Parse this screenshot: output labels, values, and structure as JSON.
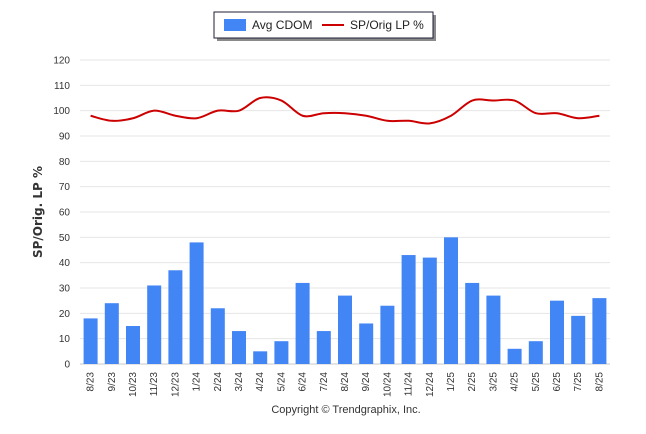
{
  "chart_data": {
    "type": "bar+line",
    "categories": [
      "8/23",
      "9/23",
      "10/23",
      "11/23",
      "12/23",
      "1/24",
      "2/24",
      "3/24",
      "4/24",
      "5/24",
      "6/24",
      "7/24",
      "8/24",
      "9/24",
      "10/24",
      "11/24",
      "12/24",
      "1/25",
      "2/25",
      "3/25",
      "4/25",
      "5/25",
      "6/25",
      "7/25",
      "8/25"
    ],
    "series": [
      {
        "name": "Avg CDOM",
        "type": "bar",
        "color": "#4285f4",
        "values": [
          18,
          24,
          15,
          31,
          37,
          48,
          22,
          13,
          5,
          9,
          32,
          13,
          27,
          16,
          23,
          43,
          42,
          50,
          32,
          27,
          6,
          9,
          25,
          19,
          26
        ]
      },
      {
        "name": "SP/Orig LP %",
        "type": "line",
        "color": "#cc0000",
        "values": [
          98,
          96,
          97,
          100,
          98,
          97,
          100,
          100,
          105,
          104,
          98,
          99,
          99,
          98,
          96,
          96,
          95,
          98,
          104,
          104,
          104,
          99,
          99,
          97,
          98
        ]
      }
    ],
    "ylabel": "SP/Orig. LP %",
    "ylim": [
      0,
      120
    ],
    "yticks": [
      0,
      10,
      20,
      30,
      40,
      50,
      60,
      70,
      80,
      90,
      100,
      110,
      120
    ],
    "grid": true,
    "legend": "top-center"
  },
  "footer": "Copyright © Trendgraphix, Inc."
}
